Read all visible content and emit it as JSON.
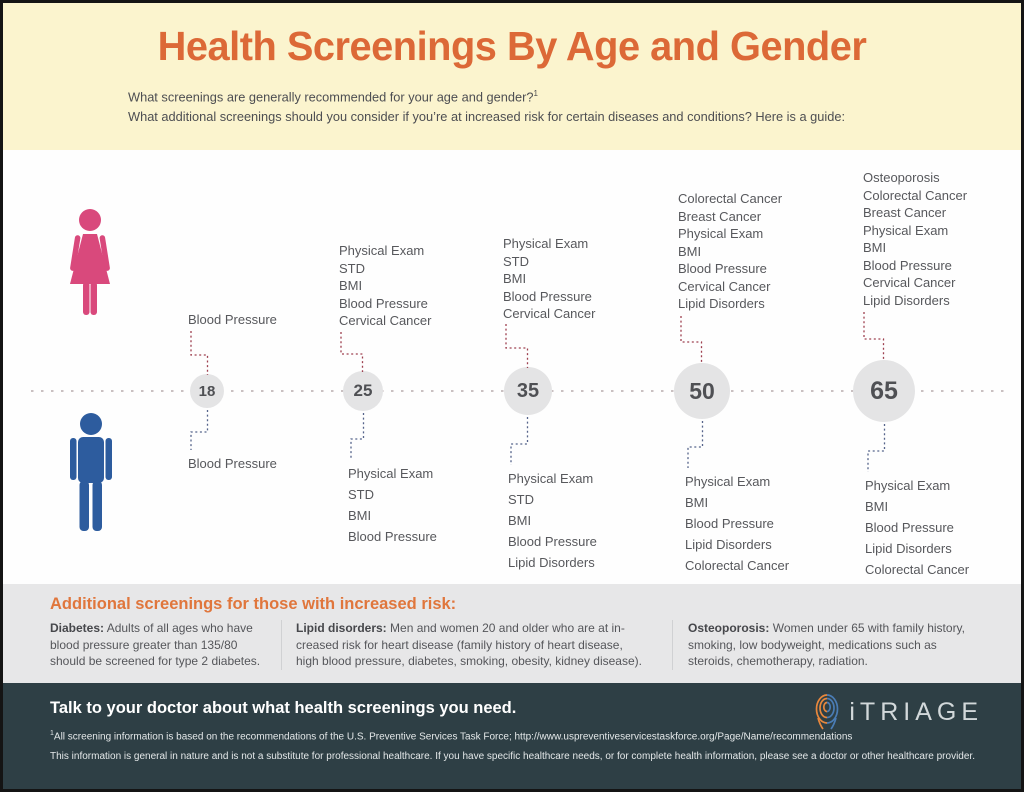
{
  "header": {
    "title": "Health Screenings By Age and Gender",
    "subtitle_line1": "What screenings are generally recommended for your age and gender?",
    "subtitle_sup1": "1",
    "subtitle_line2": "What additional screenings should you consider if you’re at increased risk for certain diseases and conditions? Here is a guide:"
  },
  "timeline": {
    "ages": [
      {
        "age": "18",
        "female": [
          "Blood Pressure"
        ],
        "male": [
          "Blood Pressure"
        ]
      },
      {
        "age": "25",
        "female": [
          "Physical Exam",
          "STD",
          "BMI",
          "Blood Pressure",
          "Cervical Cancer"
        ],
        "male": [
          "Physical Exam",
          "STD",
          "BMI",
          "Blood Pressure"
        ]
      },
      {
        "age": "35",
        "female": [
          "Physical Exam",
          "STD",
          "BMI",
          "Blood Pressure",
          "Cervical Cancer"
        ],
        "male": [
          "Physical Exam",
          "STD",
          "BMI",
          "Blood Pressure",
          "Lipid Disorders"
        ]
      },
      {
        "age": "50",
        "female": [
          "Colorectal Cancer",
          "Breast Cancer",
          "Physical Exam",
          "BMI",
          "Blood Pressure",
          "Cervical Cancer",
          "Lipid Disorders"
        ],
        "male": [
          "Physical Exam",
          "BMI",
          "Blood Pressure",
          "Lipid Disorders",
          "Colorectal Cancer"
        ]
      },
      {
        "age": "65",
        "female": [
          "Osteoporosis",
          "Colorectal Cancer",
          "Breast Cancer",
          "Physical Exam",
          "BMI",
          "Blood Pressure",
          "Cervical Cancer",
          "Lipid Disorders"
        ],
        "male": [
          "Physical Exam",
          "BMI",
          "Blood Pressure",
          "Lipid Disorders",
          "Colorectal Cancer"
        ]
      }
    ]
  },
  "risk_section": {
    "heading": "Additional screenings for those with increased risk:",
    "items": [
      {
        "term": "Diabetes:",
        "line1": "Adults of all ages who have",
        "line2": "blood pressure greater than 135/80",
        "line3": "should be screened for type 2 diabetes."
      },
      {
        "term": "Lipid disorders:",
        "line1": "Men and women 20 and older who are at in-",
        "line2": "creased risk for heart disease (family history of heart disease,",
        "line3": "high blood pressure, diabetes, smoking, obesity, kidney disease)."
      },
      {
        "term": "Osteoporosis:",
        "line1": "Women under 65 with family history,",
        "line2": "smoking, low bodyweight, medications such as",
        "line3": "steroids, chemotherapy, radiation."
      }
    ]
  },
  "footer": {
    "headline": "Talk to your doctor about what health screenings you need.",
    "brand": "iTRIAGE",
    "footnote_sup": "1",
    "footnote1": "All screening information is based on the recommendations of the U.S. Preventive Services Task Force; http://www.uspreventiveservicestaskforce.org/Page/Name/recommendations",
    "footnote2": "This information is general in nature and is not a substitute for professional healthcare. If you have specific healthcare needs, or for complete health information, please see a doctor or other healthcare provider."
  },
  "icons": {
    "female": "woman-silhouette",
    "male": "man-silhouette",
    "brand": "fingerprint"
  },
  "colors": {
    "header_bg": "#FBF4CE",
    "title_orange": "#DC6937",
    "female_pink": "#D9497C",
    "male_blue": "#2D5C9E",
    "circle_gray": "#E4E4E5",
    "female_connector": "#9E4150",
    "male_connector": "#56648B",
    "risk_bg": "#E7E7E8",
    "footer_bg": "#2E3F45"
  }
}
